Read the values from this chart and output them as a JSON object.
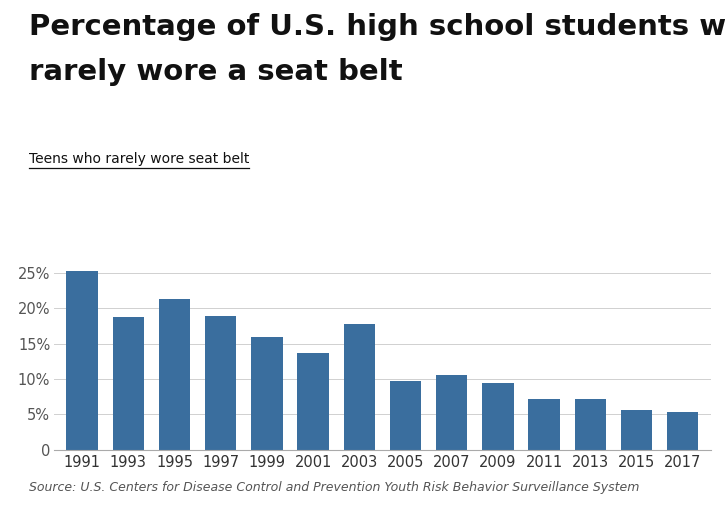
{
  "title_line1": "Percentage of U.S. high school students who",
  "title_line2": "rarely wore a seat belt",
  "subtitle": "Teens who rarely wore seat belt",
  "source": "Source: U.S. Centers for Disease Control and Prevention Youth Risk Behavior Surveillance System",
  "categories": [
    "1991",
    "1993",
    "1995",
    "1997",
    "1999",
    "2001",
    "2003",
    "2005",
    "2007",
    "2009",
    "2011",
    "2013",
    "2015",
    "2017"
  ],
  "values": [
    25.3,
    18.8,
    21.3,
    19.0,
    15.9,
    13.7,
    17.8,
    9.7,
    10.6,
    9.4,
    7.1,
    7.1,
    5.6,
    5.3
  ],
  "bar_color": "#3a6e9e",
  "background_color": "#ffffff",
  "ylim": [
    0,
    27
  ],
  "yticks": [
    0,
    5,
    10,
    15,
    20,
    25
  ],
  "ytick_labels": [
    "0",
    "5%",
    "10%",
    "15%",
    "20%",
    "25%"
  ],
  "title_fontsize": 21,
  "subtitle_fontsize": 10,
  "source_fontsize": 9,
  "tick_fontsize": 10.5
}
